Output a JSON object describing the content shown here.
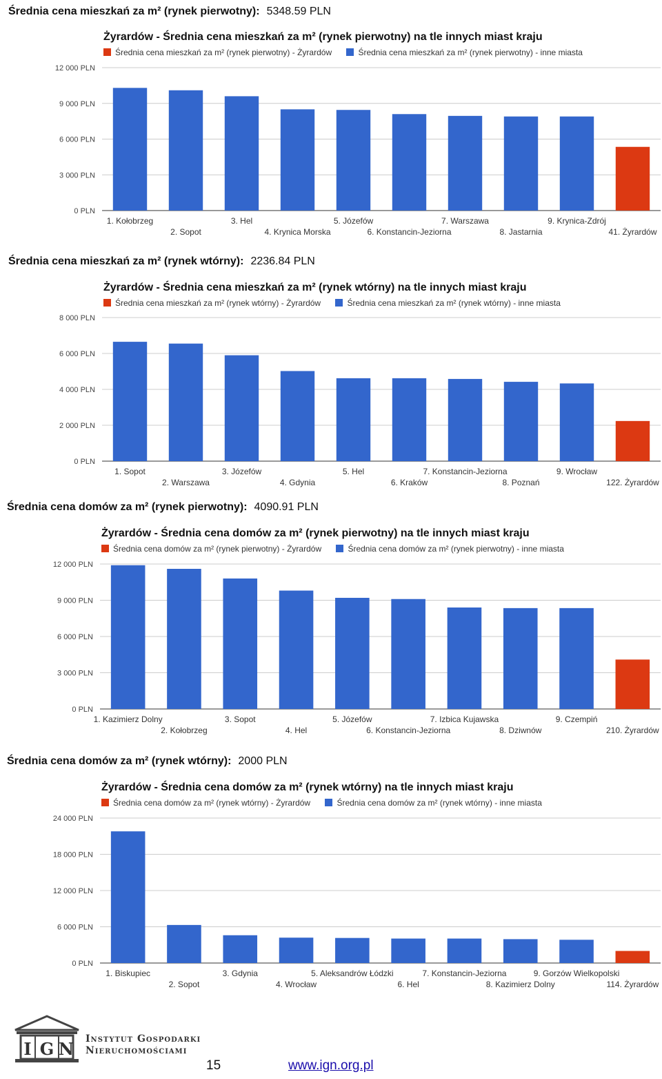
{
  "colors": {
    "blue": "#3366cc",
    "red": "#dc3912",
    "grid": "#cccccc"
  },
  "sections": [
    {
      "heading": "Średnia cena mieszkań za m² (rynek pierwotny):",
      "value": "5348.59 PLN",
      "title": "Żyrardów - Średnia cena mieszkań za m² (rynek pierwotny) na tle innych miast kraju",
      "legend_red": "Średnia cena mieszkań za m² (rynek pierwotny) - Żyrardów",
      "legend_blue": "Średnia cena mieszkań za m² (rynek pierwotny) - inne miasta"
    },
    {
      "heading": "Średnia cena mieszkań za m² (rynek wtórny):",
      "value": "2236.84 PLN",
      "title": "Żyrardów - Średnia cena mieszkań za m² (rynek wtórny) na tle innych miast kraju",
      "legend_red": "Średnia cena mieszkań za m² (rynek wtórny) - Żyrardów",
      "legend_blue": "Średnia cena mieszkań za m² (rynek wtórny) - inne miasta"
    },
    {
      "heading": "Średnia cena domów za m² (rynek pierwotny):",
      "value": "4090.91 PLN",
      "title": "Żyrardów - Średnia cena domów za m² (rynek pierwotny) na tle innych miast kraju",
      "legend_red": "Średnia cena domów za m² (rynek pierwotny) - Żyrardów",
      "legend_blue": "Średnia cena domów za m² (rynek pierwotny) - inne miasta"
    },
    {
      "heading": "Średnia cena domów za m² (rynek wtórny):",
      "value": "2000 PLN",
      "title": "Żyrardów - Średnia cena domów za m² (rynek wtórny) na tle innych miast kraju",
      "legend_red": "Średnia cena domów za m² (rynek wtórny) - Żyrardów",
      "legend_blue": "Średnia cena domów za m² (rynek wtórny) - inne miasta"
    }
  ],
  "chart_data": [
    {
      "type": "bar",
      "title": "Żyrardów - Średnia cena mieszkań za m² (rynek pierwotny) na tle innych miast kraju",
      "categories": [
        "1. Kołobrzeg",
        "2. Sopot",
        "3. Hel",
        "4. Krynica Morska",
        "5. Józefów",
        "6. Konstancin-Jeziorna",
        "7. Warszawa",
        "8. Jastarnia",
        "9. Krynica-Zdrój",
        "41. Żyrardów"
      ],
      "values": [
        10300,
        10100,
        9600,
        8500,
        8450,
        8100,
        7950,
        7900,
        7900,
        5348.59
      ],
      "ylim": [
        0,
        12000
      ],
      "yticks": [
        "0 PLN",
        "3 000 PLN",
        "6 000 PLN",
        "9 000 PLN",
        "12 000 PLN"
      ],
      "highlight_index": 9,
      "legend": "top",
      "grid": true
    },
    {
      "type": "bar",
      "title": "Żyrardów - Średnia cena mieszkań za m² (rynek wtórny) na tle innych miast kraju",
      "categories": [
        "1. Sopot",
        "2. Warszawa",
        "3. Józefów",
        "4. Gdynia",
        "5. Hel",
        "6. Kraków",
        "7. Konstancin-Jeziorna",
        "8. Poznań",
        "9. Wrocław",
        "122. Żyrardów"
      ],
      "values": [
        6650,
        6550,
        5900,
        5020,
        4620,
        4620,
        4580,
        4420,
        4330,
        2236.84
      ],
      "ylim": [
        0,
        8000
      ],
      "yticks": [
        "0 PLN",
        "2 000 PLN",
        "4 000 PLN",
        "6 000 PLN",
        "8 000 PLN"
      ],
      "highlight_index": 9,
      "legend": "top",
      "grid": true
    },
    {
      "type": "bar",
      "title": "Żyrardów - Średnia cena domów za m² (rynek pierwotny) na tle innych miast kraju",
      "categories": [
        "1. Kazimierz Dolny",
        "2. Kołobrzeg",
        "3. Sopot",
        "4. Hel",
        "5. Józefów",
        "6. Konstancin-Jeziorna",
        "7. Izbica Kujawska",
        "8. Dziwnów",
        "9. Czempiń",
        "210. Żyrardów"
      ],
      "values": [
        11900,
        11600,
        10800,
        9800,
        9200,
        9100,
        8400,
        8350,
        8350,
        4090.91
      ],
      "ylim": [
        0,
        12000
      ],
      "yticks": [
        "0 PLN",
        "3 000 PLN",
        "6 000 PLN",
        "9 000 PLN",
        "12 000 PLN"
      ],
      "highlight_index": 9,
      "legend": "top",
      "grid": true
    },
    {
      "type": "bar",
      "title": "Żyrardów - Średnia cena domów za m² (rynek wtórny) na tle innych miast kraju",
      "categories": [
        "1. Biskupiec",
        "2. Sopot",
        "3. Gdynia",
        "4. Wrocław",
        "5. Aleksandrów Łódzki",
        "6. Hel",
        "7. Konstancin-Jeziorna",
        "8. Kazimierz Dolny",
        "9. Gorzów Wielkopolski",
        "114. Żyrardów"
      ],
      "values": [
        21800,
        6300,
        4600,
        4200,
        4150,
        4050,
        4050,
        3950,
        3850,
        2000
      ],
      "ylim": [
        0,
        24000
      ],
      "yticks": [
        "0 PLN",
        "6 000 PLN",
        "12 000 PLN",
        "18 000 PLN",
        "24 000 PLN"
      ],
      "highlight_index": 9,
      "legend": "top",
      "grid": true
    }
  ],
  "footer": {
    "logo_text": "IGN",
    "institute_line1": "Instytut Gospodarki",
    "institute_line2": "Nieruchomościami",
    "page_number": "15",
    "website": "www.ign.org.pl"
  }
}
